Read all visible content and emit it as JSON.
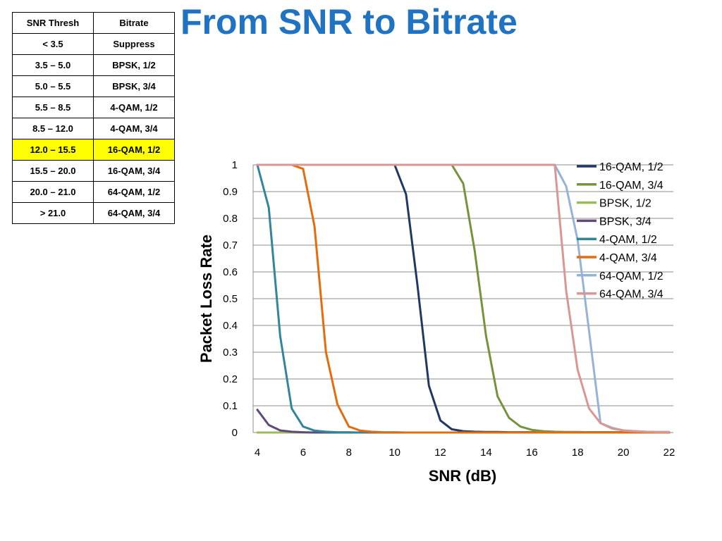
{
  "slide": {
    "title": "From SNR to Bitrate"
  },
  "table": {
    "headers": [
      "SNR Thresh",
      "Bitrate"
    ],
    "highlight_color": "#ffff00",
    "highlight_row": 5,
    "rows": [
      [
        "< 3.5",
        "Suppress"
      ],
      [
        "3.5 – 5.0",
        "BPSK, 1/2"
      ],
      [
        "5.0 – 5.5",
        "BPSK, 3/4"
      ],
      [
        "5.5 – 8.5",
        "4-QAM, 1/2"
      ],
      [
        "8.5 – 12.0",
        "4-QAM, 3/4"
      ],
      [
        "12.0 – 15.5",
        "16-QAM, 1/2"
      ],
      [
        "15.5 – 20.0",
        "16-QAM, 3/4"
      ],
      [
        "20.0 – 21.0",
        "64-QAM, 1/2"
      ],
      [
        "> 21.0",
        "64-QAM, 3/4"
      ]
    ]
  },
  "chart_data": {
    "type": "line",
    "title": "",
    "xlabel": "SNR (dB)",
    "ylabel": "Packet Loss Rate",
    "xlim": [
      4,
      22
    ],
    "ylim": [
      0,
      1
    ],
    "xticks": [
      "4",
      "6",
      "8",
      "10",
      "12",
      "14",
      "16",
      "18",
      "20",
      "22"
    ],
    "yticks": [
      "0",
      "0.1",
      "0.2",
      "0.3",
      "0.4",
      "0.5",
      "0.6",
      "0.7",
      "0.8",
      "0.9",
      "1"
    ],
    "grid": "horizontal",
    "legend_position": "right",
    "x": [
      4,
      4.5,
      5,
      5.5,
      6,
      6.5,
      7,
      7.5,
      8,
      8.5,
      9,
      9.5,
      10,
      10.5,
      11,
      11.5,
      12,
      12.5,
      13,
      13.5,
      14,
      14.5,
      15,
      15.5,
      16,
      16.5,
      17,
      17.5,
      18,
      18.5,
      19,
      19.5,
      20,
      20.5,
      21,
      21.5,
      22
    ],
    "series": [
      {
        "name": "16-QAM, 1/2",
        "color": "#1f3864",
        "values": [
          1,
          1,
          1,
          1,
          1,
          1,
          1,
          1,
          1,
          1,
          1,
          1,
          1,
          0.89,
          0.55,
          0.175,
          0.045,
          0.012,
          0.005,
          0.003,
          0.002,
          0.002,
          0.001,
          0.001,
          0.001,
          0.001,
          0.001,
          0.001,
          0.001,
          0.001,
          0.001,
          0.001,
          0.001,
          0.001,
          0.001,
          0.001,
          0.001
        ]
      },
      {
        "name": "16-QAM, 3/4",
        "color": "#76933c",
        "values": [
          1,
          1,
          1,
          1,
          1,
          1,
          1,
          1,
          1,
          1,
          1,
          1,
          1,
          1,
          1,
          1,
          1,
          1,
          0.93,
          0.68,
          0.36,
          0.135,
          0.055,
          0.022,
          0.01,
          0.005,
          0.003,
          0.002,
          0.002,
          0.001,
          0.001,
          0.001,
          0.001,
          0.001,
          0.001,
          0.001,
          0.001
        ]
      },
      {
        "name": "BPSK, 1/2",
        "color": "#9bbb59",
        "values": [
          0,
          0,
          0,
          0,
          0,
          0,
          0,
          0,
          0,
          0,
          0,
          0,
          0,
          0,
          0,
          0,
          0,
          0,
          0,
          0,
          0,
          0,
          0,
          0,
          0,
          0,
          0,
          0,
          0,
          0,
          0,
          0,
          0,
          0,
          0,
          0,
          0
        ]
      },
      {
        "name": "BPSK, 3/4",
        "color": "#604a7b",
        "values": [
          0.085,
          0.028,
          0.008,
          0.003,
          0.001,
          0,
          0,
          0,
          0,
          0,
          0,
          0,
          0,
          0,
          0,
          0,
          0,
          0,
          0,
          0,
          0,
          0,
          0,
          0,
          0,
          0,
          0,
          0,
          0,
          0,
          0,
          0,
          0,
          0,
          0,
          0,
          0
        ]
      },
      {
        "name": "4-QAM, 1/2",
        "color": "#31859c",
        "values": [
          1,
          0.84,
          0.36,
          0.09,
          0.022,
          0.007,
          0.003,
          0.001,
          0.001,
          0,
          0,
          0,
          0,
          0,
          0,
          0,
          0,
          0,
          0,
          0,
          0,
          0,
          0,
          0,
          0,
          0,
          0,
          0,
          0,
          0,
          0,
          0,
          0,
          0,
          0,
          0,
          0
        ]
      },
      {
        "name": "4-QAM, 3/4",
        "color": "#e46c0a",
        "values": [
          1,
          1,
          1,
          1,
          0.985,
          0.77,
          0.3,
          0.105,
          0.022,
          0.007,
          0.003,
          0.001,
          0.001,
          0,
          0,
          0,
          0,
          0,
          0,
          0,
          0,
          0,
          0,
          0,
          0,
          0,
          0,
          0,
          0,
          0,
          0,
          0,
          0,
          0,
          0,
          0,
          0
        ]
      },
      {
        "name": "64-QAM, 1/2",
        "color": "#95b3d7",
        "values": [
          1,
          1,
          1,
          1,
          1,
          1,
          1,
          1,
          1,
          1,
          1,
          1,
          1,
          1,
          1,
          1,
          1,
          1,
          1,
          1,
          1,
          1,
          1,
          1,
          1,
          1,
          1,
          0.92,
          0.72,
          0.38,
          0.035,
          0.018,
          0.008,
          0.005,
          0.003,
          0.002,
          0.002
        ]
      },
      {
        "name": "64-QAM, 3/4",
        "color": "#d99694",
        "values": [
          1,
          1,
          1,
          1,
          1,
          1,
          1,
          1,
          1,
          1,
          1,
          1,
          1,
          1,
          1,
          1,
          1,
          1,
          1,
          1,
          1,
          1,
          1,
          1,
          1,
          1,
          1,
          0.53,
          0.235,
          0.09,
          0.035,
          0.015,
          0.008,
          0.005,
          0.003,
          0.002,
          0.002
        ]
      }
    ]
  }
}
